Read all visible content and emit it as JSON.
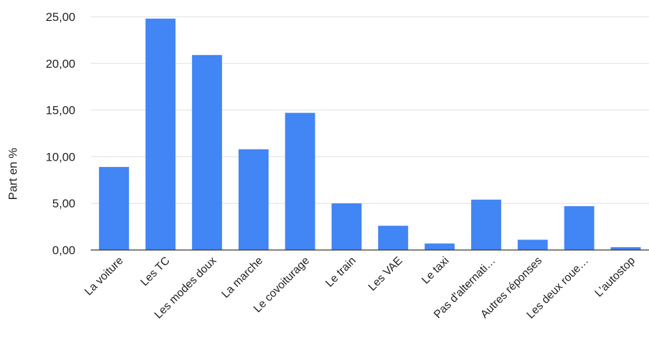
{
  "chart_data": {
    "type": "bar",
    "title": "",
    "xlabel": "",
    "ylabel": "Part en %",
    "ylim": [
      0,
      25
    ],
    "yticks": [
      0,
      5,
      10,
      15,
      20,
      25
    ],
    "ytick_labels": [
      "0,00",
      "5,00",
      "10,00",
      "15,00",
      "20,00",
      "25,00"
    ],
    "grid": "horizontal",
    "categories": [
      "La voiture",
      "Les TC",
      "Les modes doux",
      "La marche",
      "Le covoiturage",
      "Le train",
      "Les VAE",
      "Le taxi",
      "Pas d'alternati…",
      "Autres réponses",
      "Les deux roue…",
      "L'autostop"
    ],
    "values": [
      8.9,
      24.8,
      20.9,
      10.8,
      14.7,
      5.0,
      2.6,
      0.7,
      5.4,
      1.1,
      4.7,
      0.3
    ],
    "bar_color": "#4285f4",
    "grid_color": "#e0e0e0",
    "axis_color": "#333333"
  }
}
